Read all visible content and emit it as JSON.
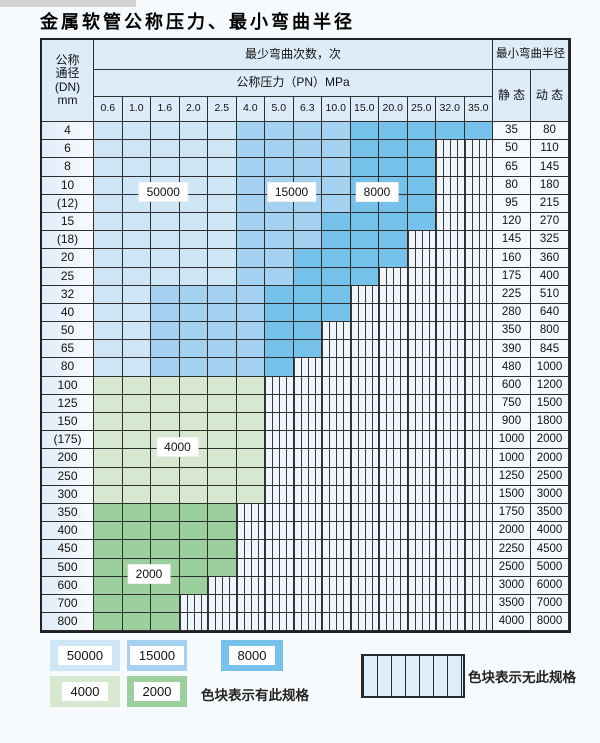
{
  "title": "金属软管公称压力、最小弯曲半径",
  "colors": {
    "zones": {
      "50000": "#cfe6f7",
      "15000": "#a4d2f0",
      "8000": "#77c2ea",
      "4000": "#d6e8cf",
      "2000": "#9ccf9e"
    },
    "hatch_bg": "#eef5fb",
    "header_bg": "#ddecf8",
    "border": "#2e2e2e"
  },
  "table": {
    "header": {
      "dn_label": "公称\n通径\n(DN)\nmm",
      "bend_cycles_label": "最少弯曲次数，次",
      "pressure_label": "公称压力（PN）MPa",
      "radius_label": "最小弯曲半径",
      "static_label": "静 态",
      "dynamic_label": "动 态",
      "pressures": [
        "0.6",
        "1.0",
        "1.6",
        "2.0",
        "2.5",
        "4.0",
        "5.0",
        "6.3",
        "10.0",
        "15.0",
        "20.0",
        "25.0",
        "32.0",
        "35.0"
      ]
    },
    "rows": [
      {
        "dn": "4",
        "zones": [
          [
            "50000",
            5
          ],
          [
            "15000",
            4
          ],
          [
            "8000",
            5
          ]
        ],
        "static": "35",
        "dynamic": "80"
      },
      {
        "dn": "6",
        "zones": [
          [
            "50000",
            5
          ],
          [
            "15000",
            4
          ],
          [
            "8000",
            3
          ]
        ],
        "static": "50",
        "dynamic": "110"
      },
      {
        "dn": "8",
        "zones": [
          [
            "50000",
            5
          ],
          [
            "15000",
            4
          ],
          [
            "8000",
            3
          ]
        ],
        "static": "65",
        "dynamic": "145"
      },
      {
        "dn": "10",
        "zones": [
          [
            "50000",
            5
          ],
          [
            "15000",
            4
          ],
          [
            "8000",
            3
          ]
        ],
        "static": "80",
        "dynamic": "180"
      },
      {
        "dn": "(12)",
        "zones": [
          [
            "50000",
            5
          ],
          [
            "15000",
            4
          ],
          [
            "8000",
            3
          ]
        ],
        "static": "95",
        "dynamic": "215"
      },
      {
        "dn": "15",
        "zones": [
          [
            "50000",
            5
          ],
          [
            "15000",
            3
          ],
          [
            "8000",
            4
          ]
        ],
        "static": "120",
        "dynamic": "270"
      },
      {
        "dn": "(18)",
        "zones": [
          [
            "50000",
            5
          ],
          [
            "15000",
            3
          ],
          [
            "8000",
            3
          ]
        ],
        "static": "145",
        "dynamic": "325"
      },
      {
        "dn": "20",
        "zones": [
          [
            "50000",
            5
          ],
          [
            "15000",
            2
          ],
          [
            "8000",
            4
          ]
        ],
        "static": "160",
        "dynamic": "360"
      },
      {
        "dn": "25",
        "zones": [
          [
            "50000",
            5
          ],
          [
            "15000",
            2
          ],
          [
            "8000",
            3
          ]
        ],
        "static": "175",
        "dynamic": "400"
      },
      {
        "dn": "32",
        "zones": [
          [
            "50000",
            2
          ],
          [
            "15000",
            4
          ],
          [
            "8000",
            3
          ]
        ],
        "static": "225",
        "dynamic": "510"
      },
      {
        "dn": "40",
        "zones": [
          [
            "50000",
            2
          ],
          [
            "15000",
            4
          ],
          [
            "8000",
            3
          ]
        ],
        "static": "280",
        "dynamic": "640"
      },
      {
        "dn": "50",
        "zones": [
          [
            "50000",
            2
          ],
          [
            "15000",
            4
          ],
          [
            "8000",
            2
          ]
        ],
        "static": "350",
        "dynamic": "800"
      },
      {
        "dn": "65",
        "zones": [
          [
            "50000",
            2
          ],
          [
            "15000",
            4
          ],
          [
            "8000",
            2
          ]
        ],
        "static": "390",
        "dynamic": "845"
      },
      {
        "dn": "80",
        "zones": [
          [
            "50000",
            2
          ],
          [
            "15000",
            4
          ],
          [
            "8000",
            1
          ]
        ],
        "static": "480",
        "dynamic": "1000"
      },
      {
        "dn": "100",
        "zones": [
          [
            "4000",
            6
          ]
        ],
        "static": "600",
        "dynamic": "1200"
      },
      {
        "dn": "125",
        "zones": [
          [
            "4000",
            6
          ]
        ],
        "static": "750",
        "dynamic": "1500"
      },
      {
        "dn": "150",
        "zones": [
          [
            "4000",
            6
          ]
        ],
        "static": "900",
        "dynamic": "1800"
      },
      {
        "dn": "(175)",
        "zones": [
          [
            "4000",
            6
          ]
        ],
        "static": "1000",
        "dynamic": "2000"
      },
      {
        "dn": "200",
        "zones": [
          [
            "4000",
            6
          ]
        ],
        "static": "1000",
        "dynamic": "2000"
      },
      {
        "dn": "250",
        "zones": [
          [
            "4000",
            6
          ]
        ],
        "static": "1250",
        "dynamic": "2500"
      },
      {
        "dn": "300",
        "zones": [
          [
            "4000",
            6
          ]
        ],
        "static": "1500",
        "dynamic": "3000"
      },
      {
        "dn": "350",
        "zones": [
          [
            "2000",
            5
          ]
        ],
        "static": "1750",
        "dynamic": "3500"
      },
      {
        "dn": "400",
        "zones": [
          [
            "2000",
            5
          ]
        ],
        "static": "2000",
        "dynamic": "4000"
      },
      {
        "dn": "450",
        "zones": [
          [
            "2000",
            5
          ]
        ],
        "static": "2250",
        "dynamic": "4500"
      },
      {
        "dn": "500",
        "zones": [
          [
            "2000",
            5
          ]
        ],
        "static": "2500",
        "dynamic": "5000"
      },
      {
        "dn": "600",
        "zones": [
          [
            "2000",
            4
          ]
        ],
        "static": "3000",
        "dynamic": "6000"
      },
      {
        "dn": "700",
        "zones": [
          [
            "2000",
            3
          ]
        ],
        "static": "3500",
        "dynamic": "7000"
      },
      {
        "dn": "800",
        "zones": [
          [
            "2000",
            3
          ]
        ],
        "static": "4000",
        "dynamic": "8000"
      }
    ],
    "region_labels": [
      {
        "text": "50000",
        "boundary_after_row": 4,
        "col_start": 1,
        "col_end": 3
      },
      {
        "text": "15000",
        "boundary_after_row": 4,
        "col_start": 6,
        "col_end": 7
      },
      {
        "text": "8000",
        "boundary_after_row": 4,
        "col_start": 9,
        "col_end": 10
      },
      {
        "text": "4000",
        "boundary_after_row": 18,
        "col_start": 2,
        "col_end": 3
      },
      {
        "text": "2000",
        "boundary_after_row": 25,
        "col_start": 1,
        "col_end": 2
      }
    ]
  },
  "legend": {
    "items": [
      {
        "value": "50000",
        "color": "#cfe6f7"
      },
      {
        "value": "15000",
        "color": "#a4d2f0"
      },
      {
        "value": "8000",
        "color": "#77c2ea"
      },
      {
        "value": "4000",
        "color": "#d6e8cf"
      },
      {
        "value": "2000",
        "color": "#9ccf9e"
      }
    ],
    "has_spec_text": "色块表示有此规格",
    "no_spec_text": "色块表示无此规格"
  },
  "chart_data": {
    "type": "table",
    "title": "金属软管公称压力、最小弯曲半径",
    "columns": [
      "DN(mm)",
      "0.6",
      "1.0",
      "1.6",
      "2.0",
      "2.5",
      "4.0",
      "5.0",
      "6.3",
      "10.0",
      "15.0",
      "20.0",
      "25.0",
      "32.0",
      "35.0",
      "静态",
      "动态"
    ],
    "bend_cycle_zones_by_dn": {
      "4": "50000:0.6-2.5, 15000:4.0-10.0, 8000:15.0-35.0",
      "6": "50000:0.6-2.5, 15000:4.0-10.0, 8000:15.0-25.0",
      "8": "50000:0.6-2.5, 15000:4.0-10.0, 8000:15.0-25.0",
      "10": "50000:0.6-2.5, 15000:4.0-10.0, 8000:15.0-25.0",
      "(12)": "50000:0.6-2.5, 15000:4.0-10.0, 8000:15.0-25.0",
      "15": "50000:0.6-2.5, 15000:4.0-6.3, 8000:10.0-25.0",
      "(18)": "50000:0.6-2.5, 15000:4.0-6.3, 8000:10.0-20.0",
      "20": "50000:0.6-2.5, 15000:4.0-5.0, 8000:6.3-20.0",
      "25": "50000:0.6-2.5, 15000:4.0-5.0, 8000:6.3-15.0",
      "32": "50000:0.6-1.0, 15000:1.6-4.0, 8000:5.0-10.0",
      "40": "50000:0.6-1.0, 15000:1.6-4.0, 8000:5.0-10.0",
      "50": "50000:0.6-1.0, 15000:1.6-4.0, 8000:5.0-6.3",
      "65": "50000:0.6-1.0, 15000:1.6-4.0, 8000:5.0-6.3",
      "80": "50000:0.6-1.0, 15000:1.6-4.0, 8000:5.0",
      "100-300": "4000:0.6-4.0",
      "350-500": "2000:0.6-2.5",
      "600": "2000:0.6-2.0",
      "700-800": "2000:0.6-1.6"
    },
    "min_bend_radius": {
      "4": [
        35,
        80
      ],
      "6": [
        50,
        110
      ],
      "8": [
        65,
        145
      ],
      "10": [
        80,
        180
      ],
      "(12)": [
        95,
        215
      ],
      "15": [
        120,
        270
      ],
      "(18)": [
        145,
        325
      ],
      "20": [
        160,
        360
      ],
      "25": [
        175,
        400
      ],
      "32": [
        225,
        510
      ],
      "40": [
        280,
        640
      ],
      "50": [
        350,
        800
      ],
      "65": [
        390,
        845
      ],
      "80": [
        480,
        1000
      ],
      "100": [
        600,
        1200
      ],
      "125": [
        750,
        1500
      ],
      "150": [
        900,
        1800
      ],
      "(175)": [
        1000,
        2000
      ],
      "200": [
        1000,
        2000
      ],
      "250": [
        1250,
        2500
      ],
      "300": [
        1500,
        3000
      ],
      "350": [
        1750,
        3500
      ],
      "400": [
        2000,
        4000
      ],
      "450": [
        2250,
        4500
      ],
      "500": [
        2500,
        5000
      ],
      "600": [
        3000,
        6000
      ],
      "700": [
        3500,
        7000
      ],
      "800": [
        4000,
        8000
      ]
    }
  }
}
